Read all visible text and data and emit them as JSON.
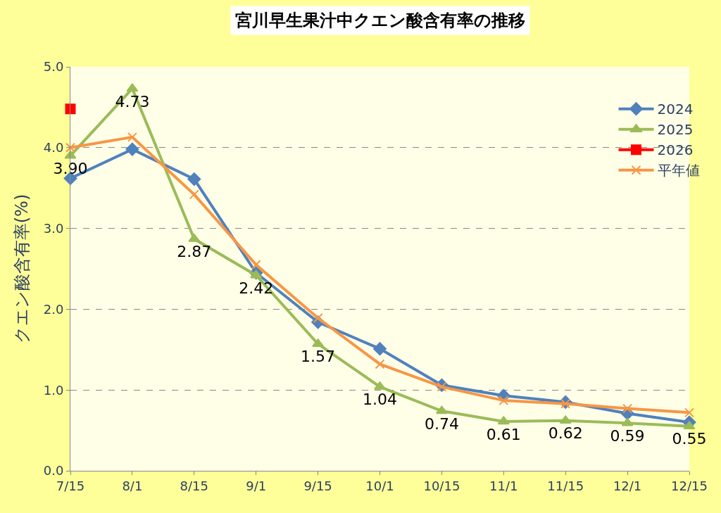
{
  "chart_data": {
    "type": "line",
    "title": "宮川早生果汁中クエン酸含有率の推移",
    "ylabel": "クエン酸含有率(%)",
    "categories": [
      "7/15",
      "8/1",
      "8/15",
      "9/1",
      "9/15",
      "10/1",
      "10/15",
      "11/1",
      "11/15",
      "12/1",
      "12/15"
    ],
    "series": [
      {
        "name": "2024",
        "color": "#4f81bd",
        "marker": "diamond",
        "values": [
          3.62,
          3.98,
          3.61,
          2.45,
          1.84,
          1.51,
          1.06,
          0.93,
          0.85,
          0.71,
          0.6
        ]
      },
      {
        "name": "2025",
        "color": "#9bbb59",
        "marker": "triangle",
        "values": [
          3.9,
          4.73,
          2.87,
          2.42,
          1.57,
          1.04,
          0.74,
          0.61,
          0.62,
          0.59,
          0.55
        ],
        "value_labels": [
          "3.90",
          "4.73",
          "2.87",
          "2.42",
          "1.57",
          "1.04",
          "0.74",
          "0.61",
          "0.62",
          "0.59",
          "0.55"
        ]
      },
      {
        "name": "2026",
        "color": "#ff0000",
        "marker": "square",
        "values": [
          4.48,
          null,
          null,
          null,
          null,
          null,
          null,
          null,
          null,
          null,
          null
        ]
      },
      {
        "name": "平年値",
        "color": "#f79646",
        "marker": "cross",
        "values": [
          4.0,
          4.13,
          3.42,
          2.55,
          1.89,
          1.32,
          1.04,
          0.87,
          0.83,
          0.77,
          0.72
        ]
      }
    ],
    "ylim": [
      0,
      5
    ],
    "yticks": [
      {
        "value": 0,
        "label": "0.0"
      },
      {
        "value": 1,
        "label": "1.0"
      },
      {
        "value": 2,
        "label": "2.0"
      },
      {
        "value": 3,
        "label": "3.0"
      },
      {
        "value": 4,
        "label": "4.0"
      },
      {
        "value": 5,
        "label": "5.0"
      }
    ],
    "grid": "y",
    "legend": "top right",
    "line_style": "solid"
  }
}
